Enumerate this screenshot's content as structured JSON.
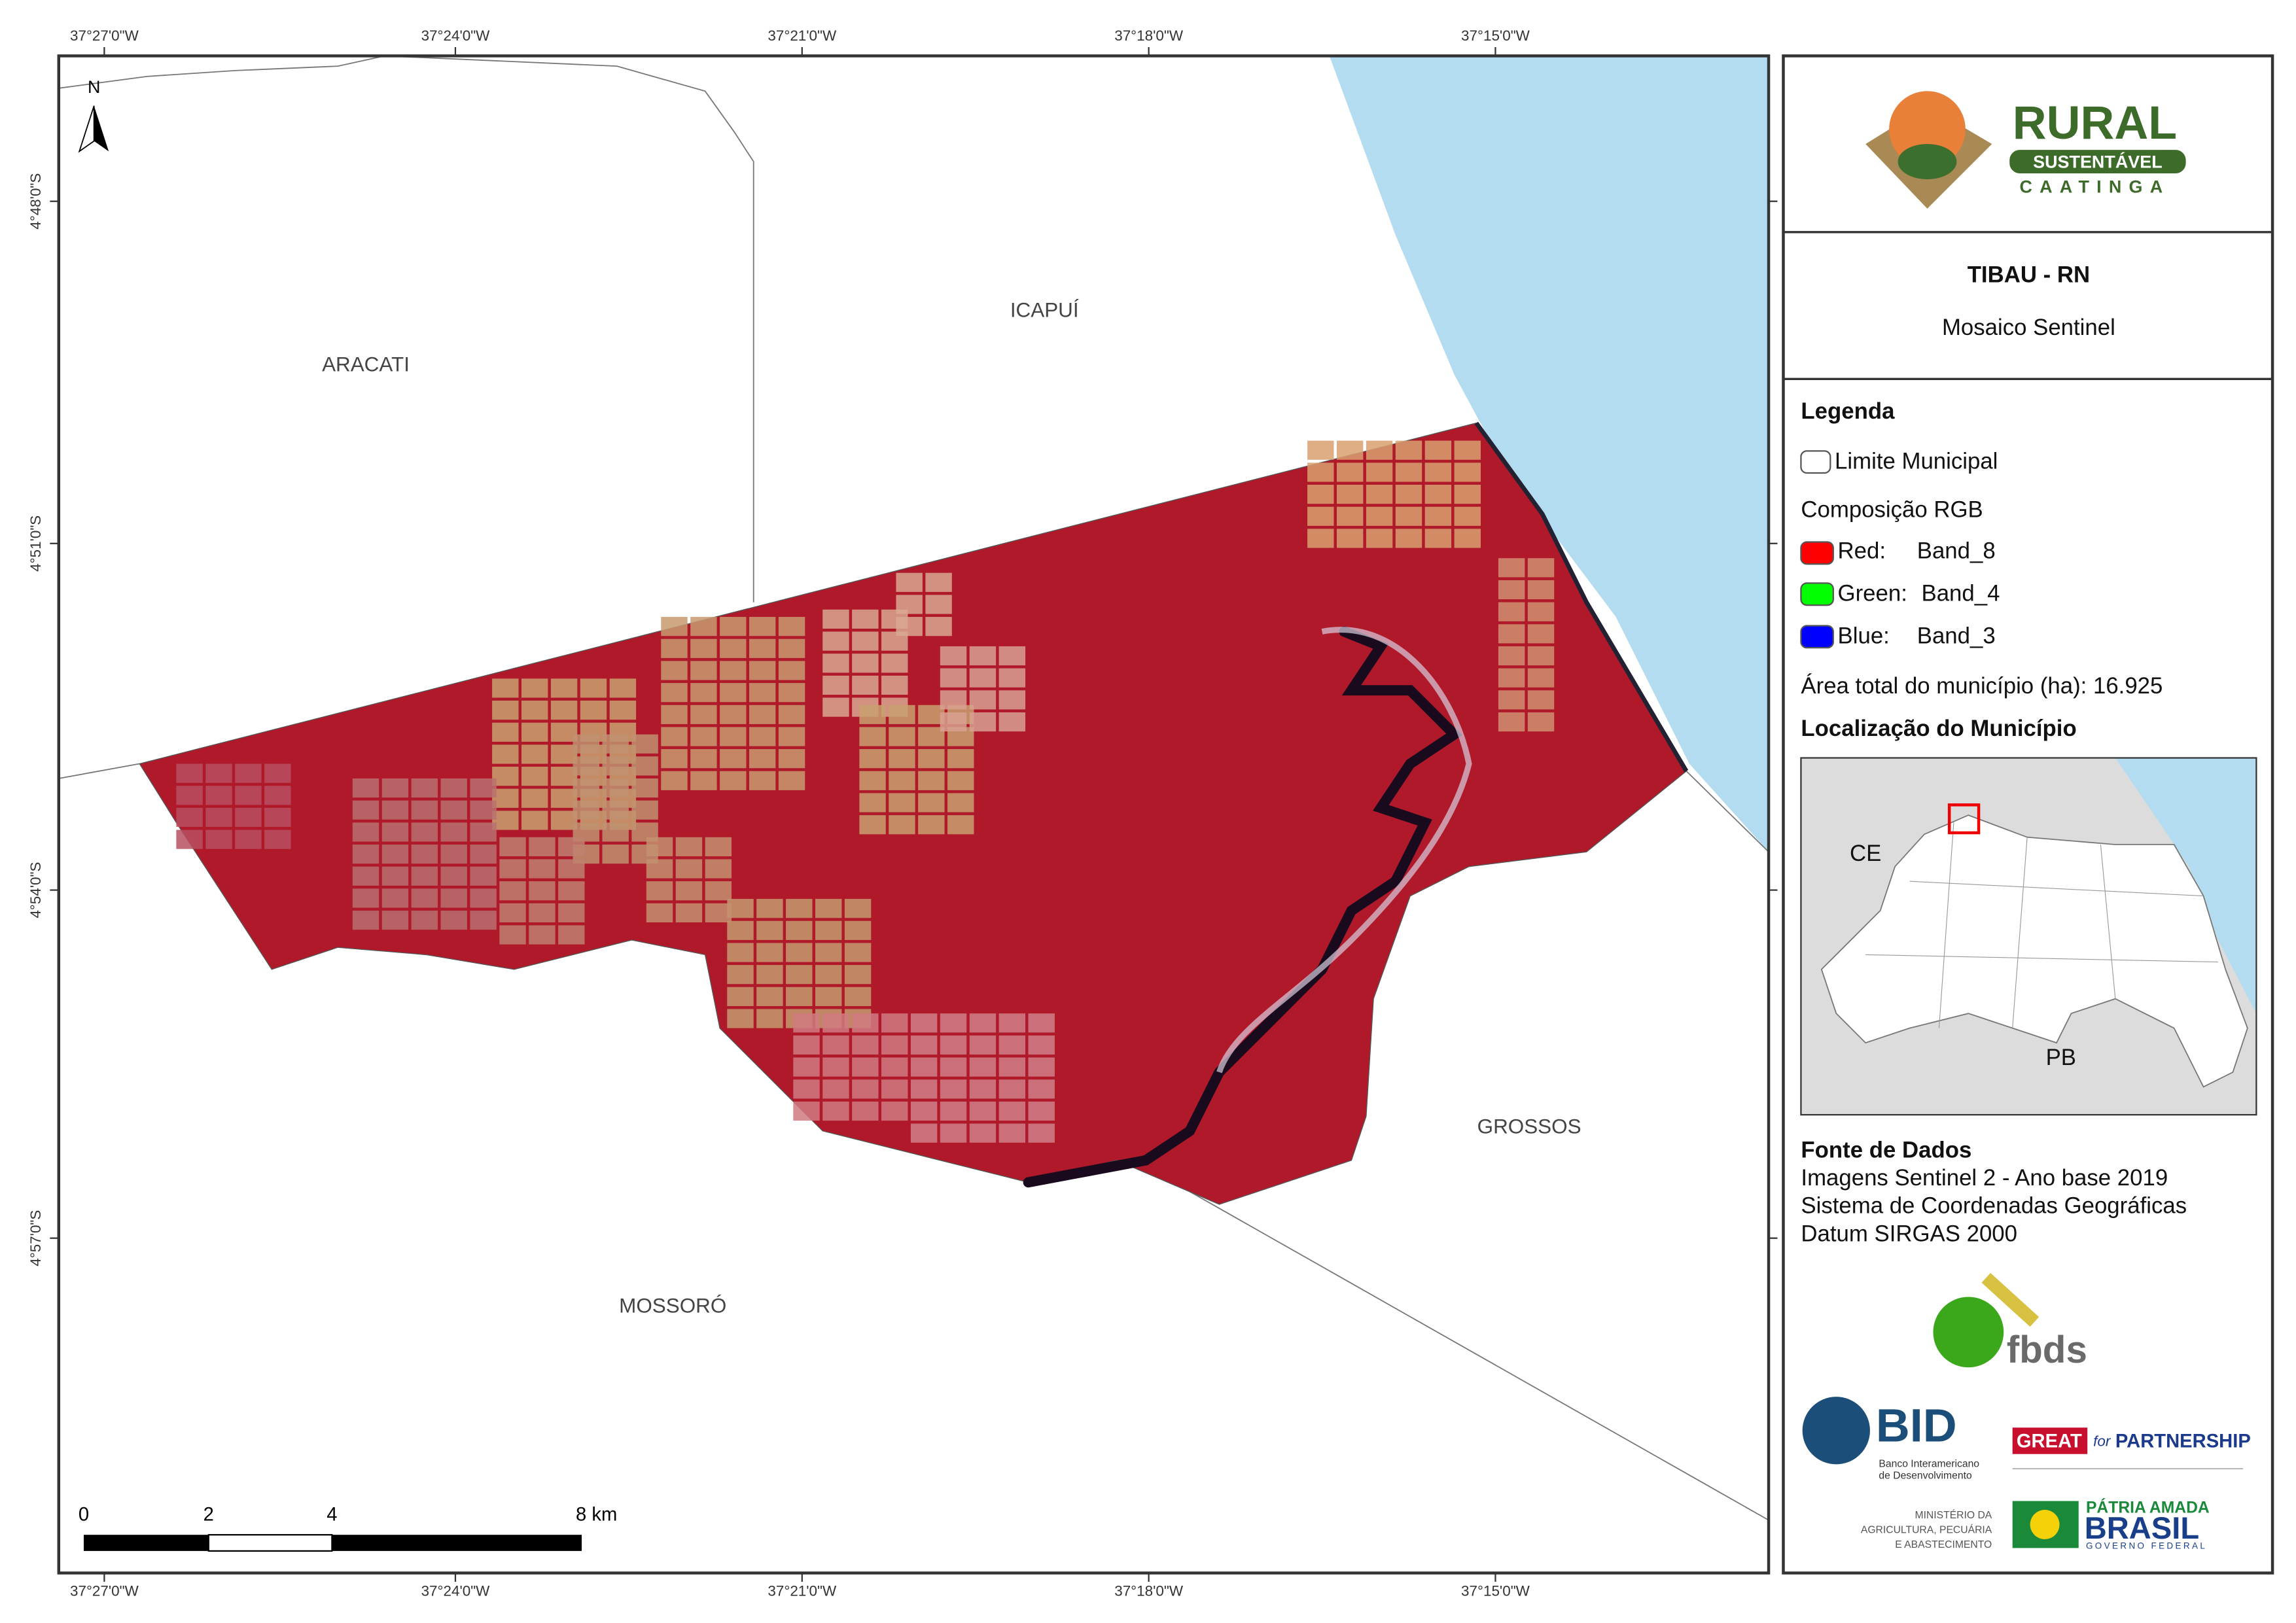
{
  "map": {
    "x_labels": [
      "37°27'0\"W",
      "37°24'0\"W",
      "37°21'0\"W",
      "37°18'0\"W",
      "37°15'0\"W"
    ],
    "y_labels": [
      "4°48'0\"S",
      "4°51'0\"S",
      "4°54'0\"S",
      "4°57'0\"S"
    ],
    "places": [
      "ARACATI",
      "ICAPUÍ",
      "GROSSOS",
      "MOSSORÓ"
    ],
    "north": "N",
    "scale_labels": [
      "0",
      "2",
      "4",
      "8 km"
    ]
  },
  "panel": {
    "title": "TIBAU - RN",
    "subtitle": "Mosaico Sentinel",
    "legend_title": "Legenda",
    "limit": "Limite Municipal",
    "composition": "Composição RGB",
    "bands": [
      [
        "Red:",
        "Band_8"
      ],
      [
        "Green:",
        "Band_4"
      ],
      [
        "Blue:",
        "Band_3"
      ]
    ],
    "area": "Área total do município (ha): 16.925",
    "location_title": "Localização do Município",
    "inset_labels": [
      "CE",
      "PB"
    ],
    "source_title": "Fonte de Dados",
    "sources": [
      "Imagens Sentinel 2 - Ano base 2019",
      "Sistema de Coordenadas Geográficas",
      "Datum SIRGAS 2000"
    ]
  },
  "logos": {
    "rural": "RURAL",
    "sustentavel": "SUSTENTÁVEL",
    "caatinga": "CAATINGA",
    "fbds": "fbds",
    "bid": "BID",
    "bid_name": [
      "Banco Interamericano",
      "de Desenvolvimento"
    ],
    "great": "GREAT",
    "for": "for",
    "partnership": "PARTNERSHIP",
    "ministry": [
      "MINISTÉRIO DA",
      "AGRICULTURA, PECUÁRIA",
      "E ABASTECIMENTO"
    ],
    "patria": "PÁTRIA AMADA",
    "brasil": "BRASIL",
    "governo": "GOVERNO FEDERAL"
  }
}
